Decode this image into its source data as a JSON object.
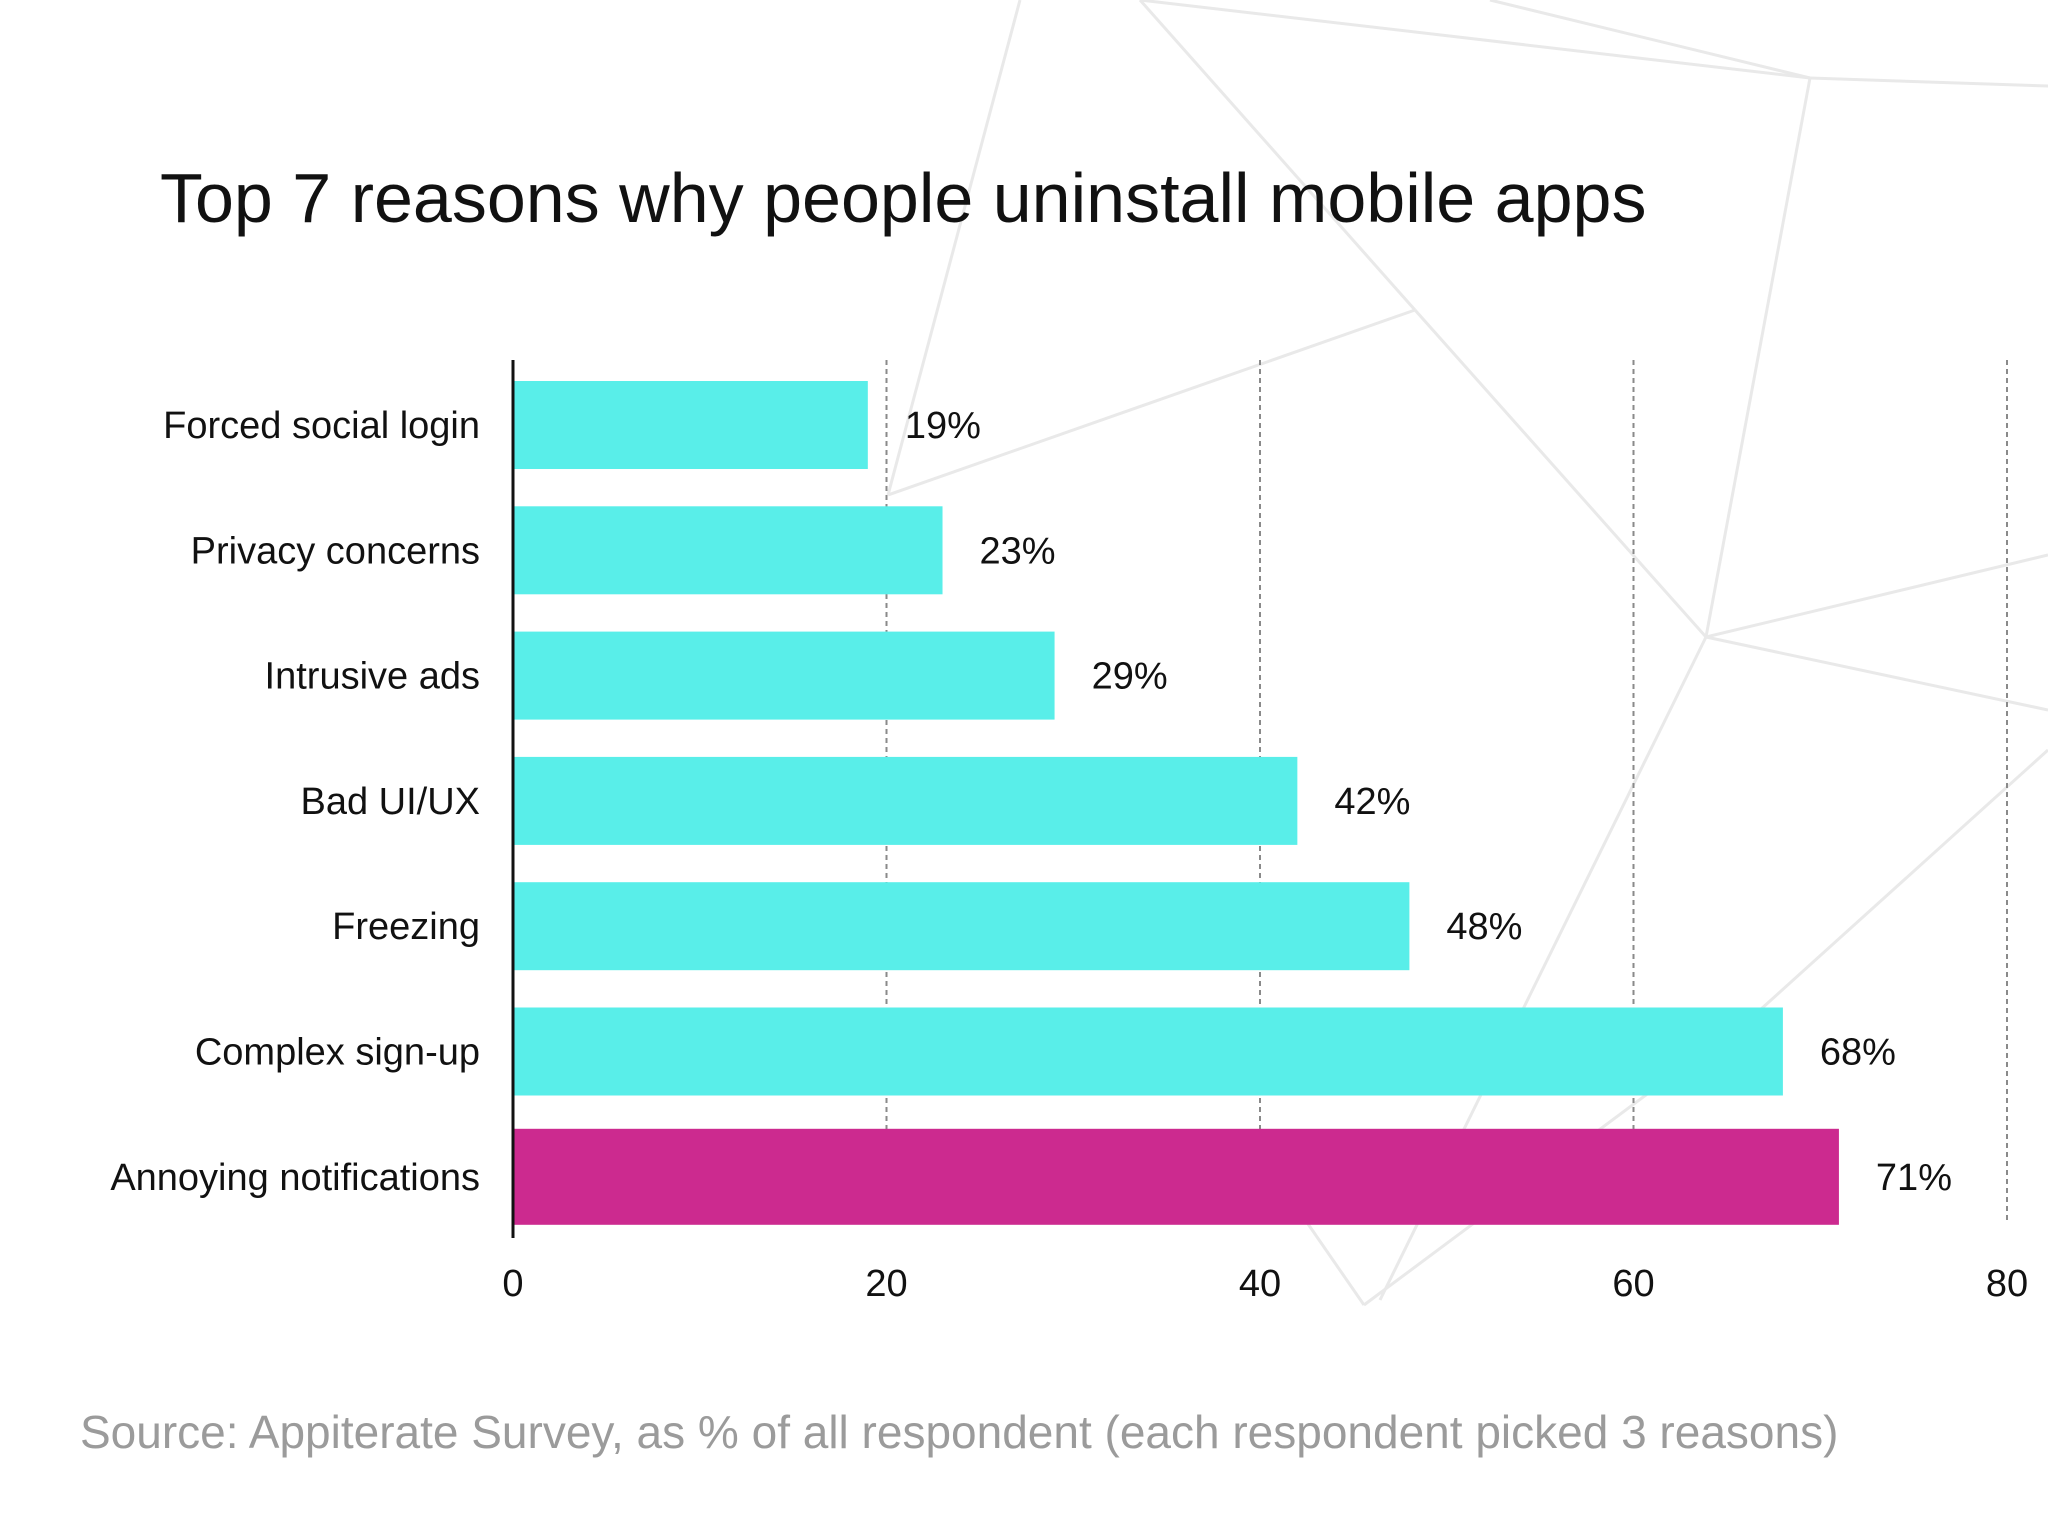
{
  "chart_data": {
    "type": "bar",
    "orientation": "horizontal",
    "title": "Top 7 reasons why people uninstall mobile apps",
    "categories": [
      "Forced social login",
      "Privacy concerns",
      "Intrusive ads",
      "Bad UI/UX",
      "Freezing",
      "Complex sign-up",
      "Annoying notifications"
    ],
    "values": [
      19,
      23,
      29,
      42,
      48,
      68,
      71
    ],
    "data_labels": [
      "19%",
      "23%",
      "29%",
      "42%",
      "48%",
      "68%",
      "71%"
    ],
    "xlim": [
      0,
      80
    ],
    "x_ticks": [
      "0",
      "20",
      "40",
      "60",
      "80"
    ],
    "xlabel": "",
    "ylabel": "",
    "grid": "vertical dashed",
    "legend": "none",
    "colors": {
      "bar": "#59eee9",
      "highlight_bar": "#cc2a8f",
      "highlight_index": 6
    }
  },
  "source": "Source: Appiterate Survey, as % of all respondent (each respondent picked 3 reasons)"
}
